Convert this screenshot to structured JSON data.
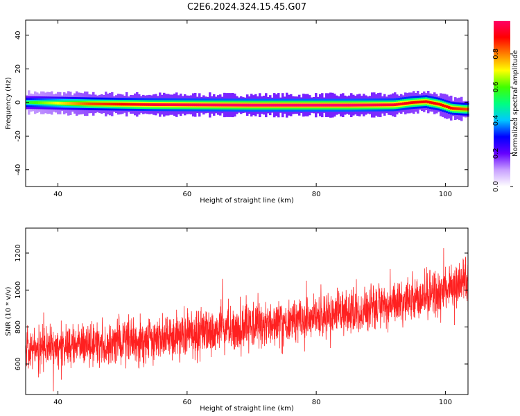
{
  "title": "C2E6.2024.324.15.45.G07",
  "chart_data": [
    {
      "type": "heatmap",
      "xlabel": "Height of straight line (km)",
      "ylabel": "Frequency (Hz)",
      "xlim": [
        35,
        103.5
      ],
      "ylim": [
        -50,
        49
      ],
      "xticks": [
        40,
        60,
        80,
        100
      ],
      "yticks": [
        -40,
        -20,
        0,
        20,
        40
      ],
      "colorbar": {
        "label": "Normalized spectral amplitude",
        "range": [
          0,
          1
        ],
        "ticks": [
          "0.0",
          "0.2",
          "0.4",
          "0.6",
          "0.8"
        ],
        "colors": [
          "#ffffff",
          "#c8a0ff",
          "#6400ff",
          "#0000ff",
          "#00c8ff",
          "#00ff80",
          "#40ff00",
          "#ffff00",
          "#ff8000",
          "#ff0000",
          "#ff0066"
        ]
      },
      "ridge": [
        {
          "x": 35,
          "f": 0.0,
          "a": 0.55
        },
        {
          "x": 45,
          "f": -0.8,
          "a": 0.85
        },
        {
          "x": 55,
          "f": -1.3,
          "a": 0.95
        },
        {
          "x": 70,
          "f": -1.6,
          "a": 1.0
        },
        {
          "x": 85,
          "f": -1.6,
          "a": 1.0
        },
        {
          "x": 92,
          "f": -1.4,
          "a": 0.95
        },
        {
          "x": 95,
          "f": 0.0,
          "a": 0.9
        },
        {
          "x": 97,
          "f": 0.5,
          "a": 0.9
        },
        {
          "x": 99,
          "f": -1.0,
          "a": 0.9
        },
        {
          "x": 101,
          "f": -3.5,
          "a": 0.9
        },
        {
          "x": 103,
          "f": -4.0,
          "a": 0.85
        }
      ]
    },
    {
      "type": "line",
      "xlabel": "Height of straight line (km)",
      "ylabel": "SNR (10 * v/v)",
      "xlim": [
        35,
        103.5
      ],
      "ylim": [
        435,
        1335
      ],
      "xticks": [
        40,
        60,
        80,
        100
      ],
      "yticks": [
        600,
        800,
        1000,
        1200
      ],
      "color": "#ff2020",
      "series": [
        {
          "x": [
            35,
            45,
            55,
            65,
            75,
            85,
            95,
            103.5
          ],
          "y": [
            680,
            710,
            730,
            780,
            830,
            880,
            950,
            1040
          ],
          "noise_amplitude": 100
        }
      ]
    }
  ]
}
